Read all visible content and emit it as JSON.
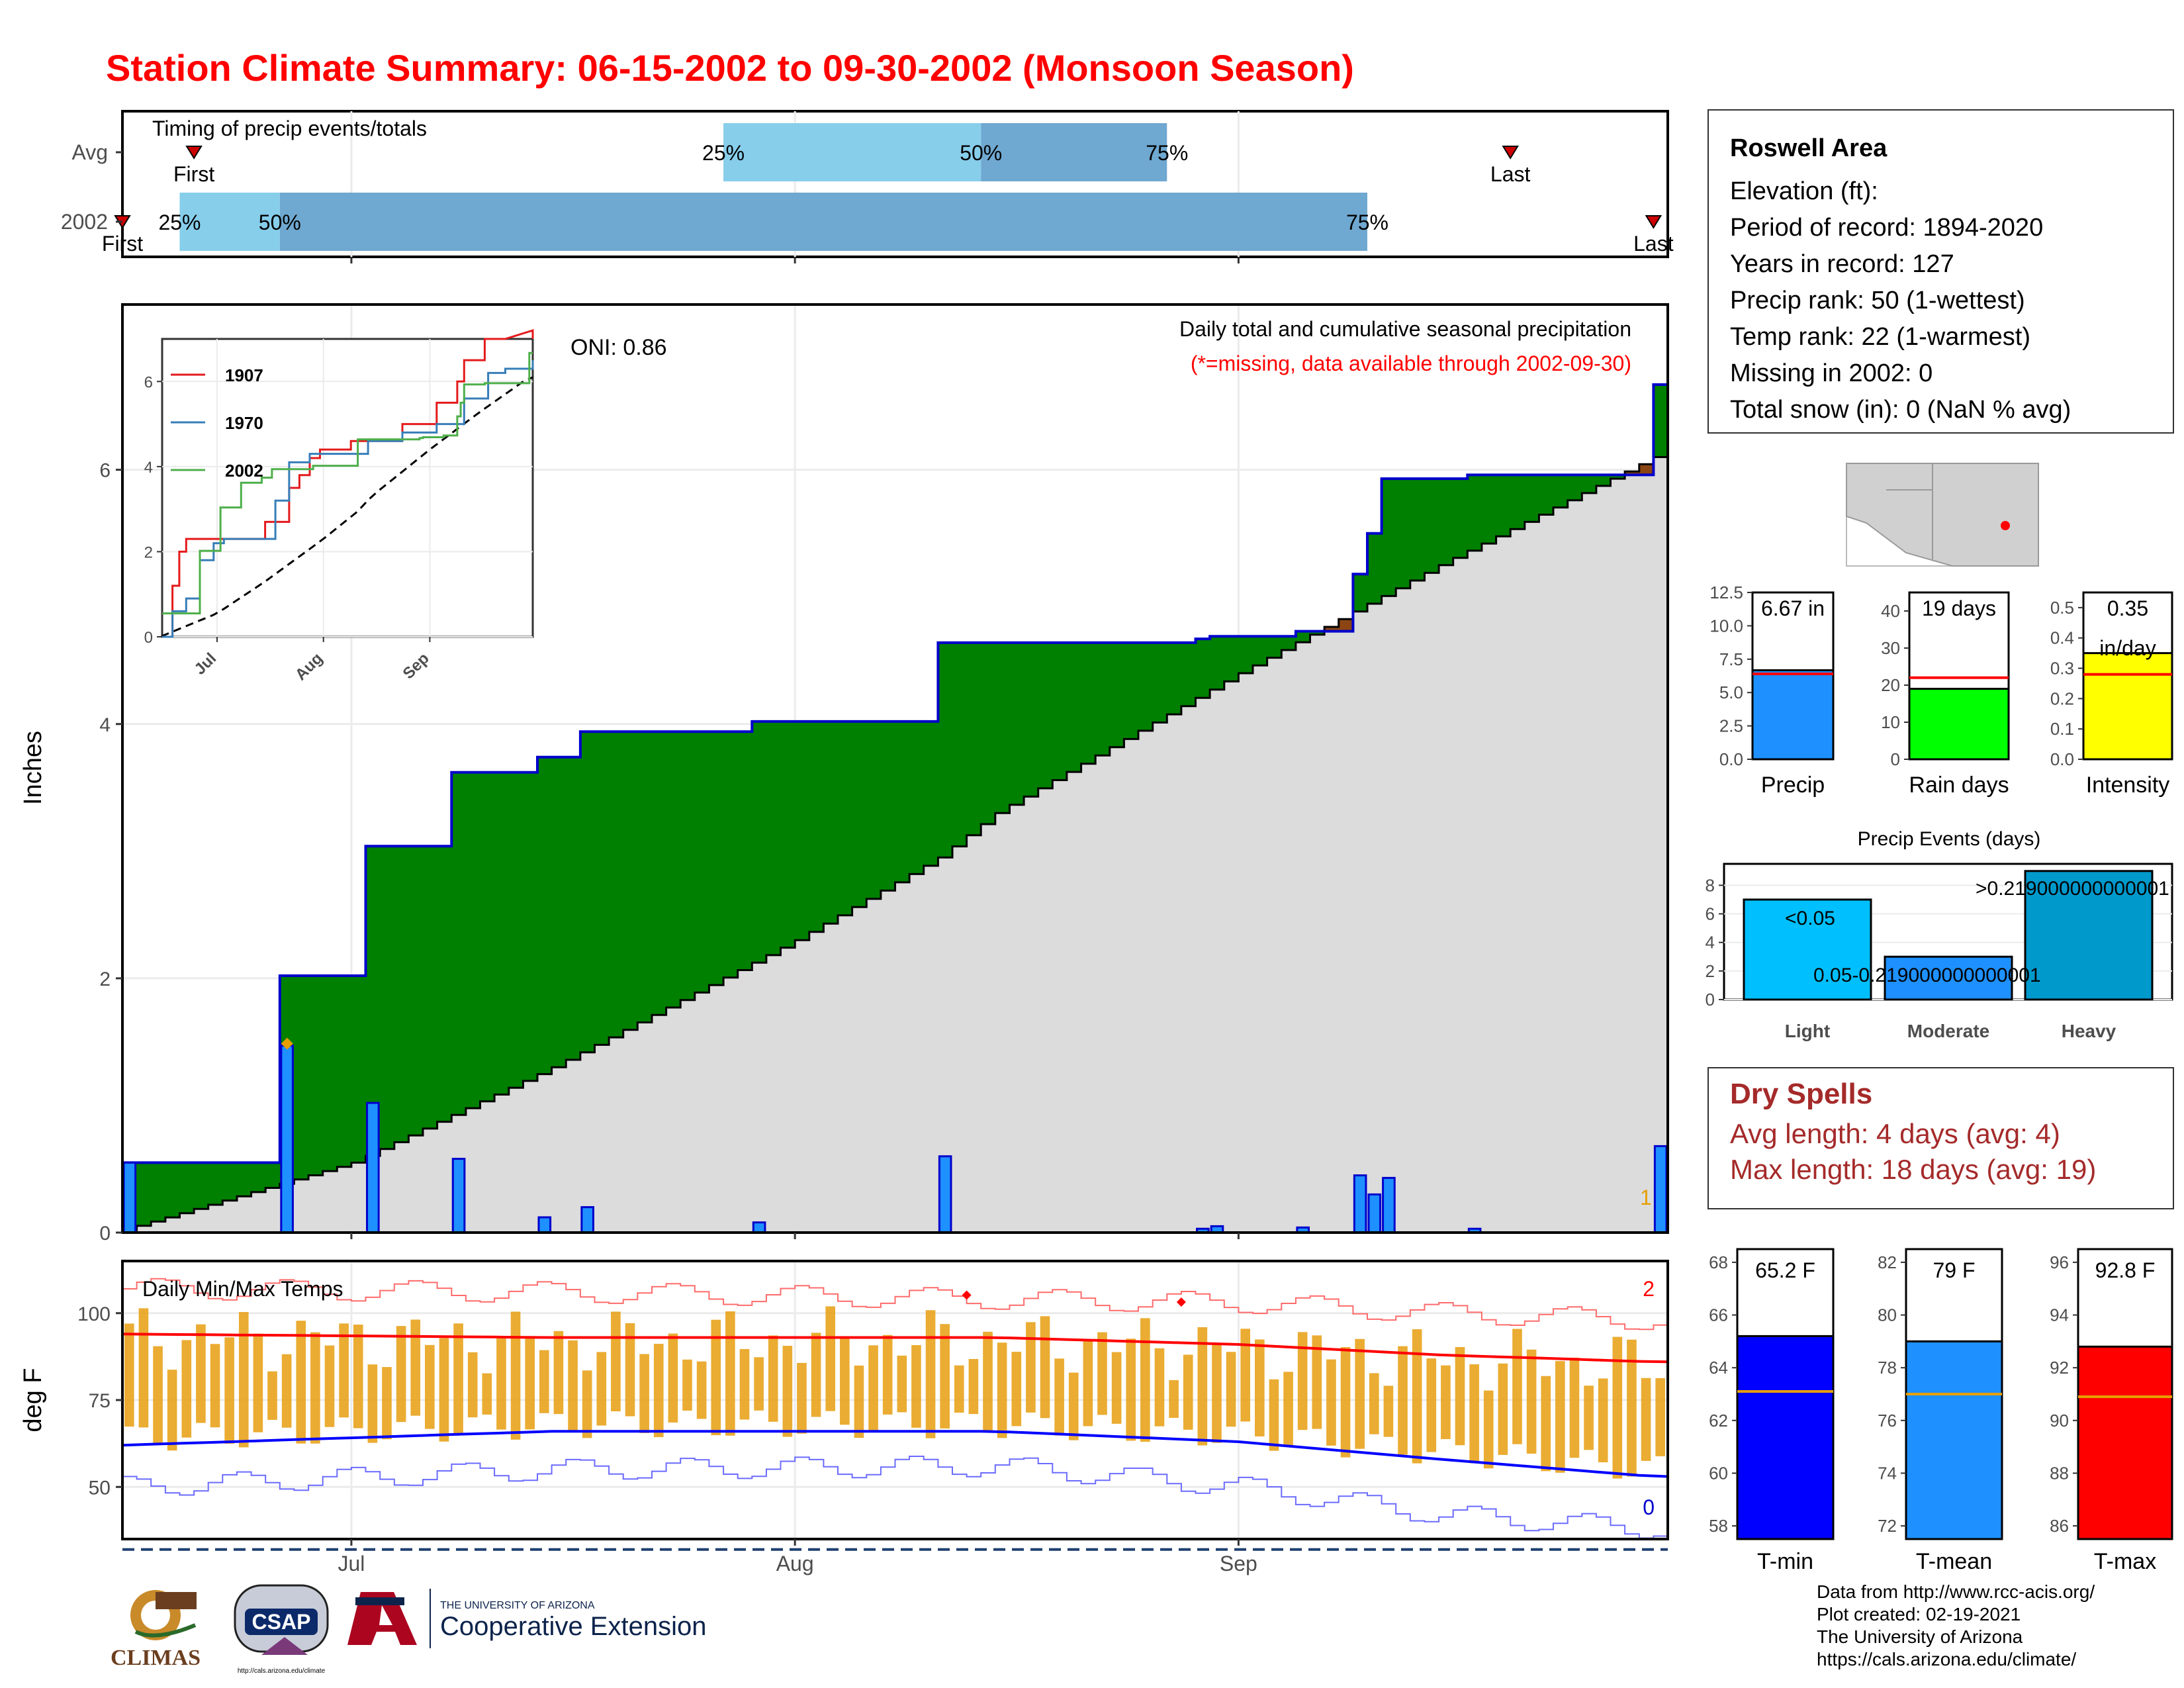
{
  "title": "Station Climate Summary: 06-15-2002 to 09-30-2002 (Monsoon Season)",
  "timing": {
    "title": "Timing of precip events/totals",
    "rows": [
      "Avg",
      "2002"
    ],
    "labels": {
      "p25": "25%",
      "p50": "50%",
      "p75": "75%",
      "first": "First",
      "last": "Last"
    },
    "avg": {
      "first": "2002-06-20",
      "p25": "2002-07-27",
      "p50": "2002-08-14",
      "p75": "2002-08-27",
      "last": "2002-09-20"
    },
    "y2002": {
      "first": "2002-06-15",
      "p25": "2002-06-19",
      "p50": "2002-06-26",
      "p75": "2002-09-10",
      "last": "2002-09-30"
    },
    "colors": {
      "q1": "#87ceeb",
      "q2": "#6fa8d0",
      "marker": "#cc0000"
    }
  },
  "precip_panel": {
    "ylabel": "Inches",
    "oni": "ONI: 0.86",
    "subtitle": "Daily total and cumulative seasonal precipitation",
    "missing_note": "(*=missing, data available through 2002-09-30)",
    "missing_count": "1",
    "yticks": [
      "0",
      "2",
      "4",
      "6"
    ],
    "xticks": [
      "Jul",
      "Aug",
      "Sep"
    ]
  },
  "temp_panel": {
    "title": "Daily Min/Max Temps",
    "ylabel": "deg F",
    "yticks": [
      "50",
      "75",
      "100"
    ],
    "xticks": [
      "Jul",
      "Aug",
      "Sep"
    ],
    "count_high": "2",
    "count_low": "0"
  },
  "station": {
    "name": "Roswell Area",
    "elevation": "Elevation (ft):",
    "period": "Period of record: 1894-2020",
    "years": "Years in record: 127",
    "precip_rank": "Precip rank: 50 (1-wettest)",
    "temp_rank": "Temp rank: 22 (1-warmest)",
    "missing": "Missing in 2002: 0",
    "snow": "Total snow (in): 0 (NaN % avg)"
  },
  "mini_bars": [
    {
      "label": "Precip",
      "value_text": "6.67 in",
      "value": 6.67,
      "avg": 6.4,
      "ymax": 12.5,
      "ticks": [
        "0.0",
        "2.5",
        "5.0",
        "7.5",
        "10.0",
        "12.5"
      ],
      "color": "#1e90ff"
    },
    {
      "label": "Rain days",
      "value_text": "19 days",
      "value": 19,
      "avg": 22,
      "ymax": 45,
      "ticks": [
        "0",
        "10",
        "20",
        "30",
        "40"
      ],
      "color": "#00ff00"
    },
    {
      "label": "Intensity",
      "value_text": "0.35",
      "value_text2": "in/day",
      "value": 0.35,
      "avg": 0.28,
      "ymax": 0.55,
      "ticks": [
        "0.0",
        "0.1",
        "0.2",
        "0.3",
        "0.4",
        "0.5"
      ],
      "color": "#ffff00"
    }
  ],
  "events": {
    "title": "Precip Events (days)",
    "categories": [
      "Light",
      "Moderate",
      "Heavy"
    ],
    "values": [
      7,
      3,
      9
    ],
    "bar_labels": [
      "<0.05",
      "0.05-0.219000000000001",
      ">0.219000000000001"
    ],
    "yticks": [
      "0",
      "2",
      "4",
      "6",
      "8"
    ]
  },
  "dry_spells": {
    "title": "Dry Spells",
    "avg": "Avg length: 4 days (avg: 4)",
    "max": "Max length: 18 days (avg: 19)"
  },
  "temp_bars": [
    {
      "label": "T-min",
      "value_text": "65.2 F",
      "value": 65.2,
      "avg": 63.1,
      "ymin": 57.5,
      "ymax": 68.5,
      "ticks": [
        "58",
        "60",
        "62",
        "64",
        "66",
        "68"
      ],
      "color": "#0000ff"
    },
    {
      "label": "T-mean",
      "value_text": "79 F",
      "value": 79.0,
      "avg": 77.0,
      "ymin": 71.5,
      "ymax": 82.5,
      "ticks": [
        "72",
        "74",
        "76",
        "78",
        "80",
        "82"
      ],
      "color": "#1e90ff"
    },
    {
      "label": "T-max",
      "value_text": "92.8 F",
      "value": 92.8,
      "avg": 90.9,
      "ymin": 85.5,
      "ymax": 96.5,
      "ticks": [
        "86",
        "88",
        "90",
        "92",
        "94",
        "96"
      ],
      "color": "#ff0000"
    }
  ],
  "inset": {
    "legend": [
      "1907",
      "1970",
      "2002"
    ],
    "colors": [
      "#e41a1c",
      "#377eb8",
      "#4daf4a"
    ],
    "yticks": [
      "0",
      "2",
      "4",
      "6"
    ],
    "xticks": [
      "Jul",
      "Aug",
      "Sep"
    ]
  },
  "credits": {
    "l1": "Data from http://www.rcc-acis.org/",
    "l2": "Plot created: 02-19-2021",
    "l3": "The University of Arizona",
    "l4": "https://cals.arizona.edu/climate/"
  },
  "logos": {
    "climas": "CLIMAS",
    "csap": "CSAP",
    "csap_url": "http://cals.arizona.edu/climate",
    "ua_line1": "THE UNIVERSITY OF ARIZONA",
    "ua_line2": "Cooperative Extension"
  },
  "chart_data": [
    {
      "type": "area",
      "title": "Daily total and cumulative seasonal precipitation",
      "xlabel": "",
      "ylabel": "Inches",
      "start": "2002-06-15",
      "end": "2002-09-30",
      "ylim": [
        0,
        7.3
      ],
      "daily_2002": [
        {
          "date": "2002-06-15",
          "value": 0.55
        },
        {
          "date": "2002-06-26",
          "value": 1.47
        },
        {
          "date": "2002-07-02",
          "value": 1.02
        },
        {
          "date": "2002-07-08",
          "value": 0.58
        },
        {
          "date": "2002-07-14",
          "value": 0.12
        },
        {
          "date": "2002-07-17",
          "value": 0.2
        },
        {
          "date": "2002-07-29",
          "value": 0.08
        },
        {
          "date": "2002-08-11",
          "value": 0.6
        },
        {
          "date": "2002-08-29",
          "value": 0.03
        },
        {
          "date": "2002-08-30",
          "value": 0.05
        },
        {
          "date": "2002-09-05",
          "value": 0.04
        },
        {
          "date": "2002-09-09",
          "value": 0.45
        },
        {
          "date": "2002-09-10",
          "value": 0.3
        },
        {
          "date": "2002-09-11",
          "value": 0.43
        },
        {
          "date": "2002-09-17",
          "value": 0.03
        },
        {
          "date": "2002-09-30",
          "value": 0.68
        }
      ],
      "cumulative_2002": [
        {
          "date": "2002-06-15",
          "value": 0.55
        },
        {
          "date": "2002-06-26",
          "value": 2.02
        },
        {
          "date": "2002-07-02",
          "value": 3.04
        },
        {
          "date": "2002-07-08",
          "value": 3.62
        },
        {
          "date": "2002-07-14",
          "value": 3.74
        },
        {
          "date": "2002-07-17",
          "value": 3.94
        },
        {
          "date": "2002-07-29",
          "value": 4.02
        },
        {
          "date": "2002-08-11",
          "value": 4.64
        },
        {
          "date": "2002-08-29",
          "value": 4.67
        },
        {
          "date": "2002-08-30",
          "value": 4.69
        },
        {
          "date": "2002-09-05",
          "value": 4.73
        },
        {
          "date": "2002-09-09",
          "value": 5.18
        },
        {
          "date": "2002-09-10",
          "value": 5.5
        },
        {
          "date": "2002-09-11",
          "value": 5.93
        },
        {
          "date": "2002-09-17",
          "value": 5.96
        },
        {
          "date": "2002-09-30",
          "value": 6.67
        }
      ],
      "average_cumulative": [
        {
          "date": "2002-06-15",
          "value": 0.02
        },
        {
          "date": "2002-07-01",
          "value": 0.55
        },
        {
          "date": "2002-07-15",
          "value": 1.3
        },
        {
          "date": "2002-08-01",
          "value": 2.3
        },
        {
          "date": "2002-08-11",
          "value": 2.95
        },
        {
          "date": "2002-08-15",
          "value": 3.3
        },
        {
          "date": "2002-09-01",
          "value": 4.4
        },
        {
          "date": "2002-09-15",
          "value": 5.25
        },
        {
          "date": "2002-09-30",
          "value": 6.1
        }
      ]
    },
    {
      "type": "line",
      "title": "Daily Min/Max Temps",
      "ylabel": "deg F",
      "ylim": [
        35,
        115
      ],
      "series": [
        {
          "name": "avg_max",
          "x": [
            "2002-06-15",
            "2002-07-15",
            "2002-08-15",
            "2002-09-01",
            "2002-09-15",
            "2002-09-30"
          ],
          "values": [
            94,
            93,
            93,
            91,
            88,
            86
          ]
        },
        {
          "name": "avg_min",
          "x": [
            "2002-06-15",
            "2002-07-15",
            "2002-08-15",
            "2002-09-01",
            "2002-09-15",
            "2002-09-30"
          ],
          "values": [
            62,
            66,
            66,
            63,
            58,
            53
          ]
        },
        {
          "name": "record_high",
          "x": [
            "2002-06-15",
            "2002-07-15",
            "2002-08-15",
            "2002-09-01",
            "2002-09-15",
            "2002-09-30"
          ],
          "values": [
            107,
            106,
            104,
            103,
            100,
            98
          ]
        },
        {
          "name": "record_low",
          "x": [
            "2002-06-15",
            "2002-07-15",
            "2002-08-15",
            "2002-09-01",
            "2002-09-15",
            "2002-09-30"
          ],
          "values": [
            50,
            55,
            56,
            50,
            42,
            38
          ]
        },
        {
          "name": "normal_freeze",
          "x": [
            "2002-06-15",
            "2002-09-30"
          ],
          "values": [
            32,
            32
          ]
        }
      ]
    },
    {
      "type": "bar",
      "title": "Precip Events (days)",
      "categories": [
        "Light",
        "Moderate",
        "Heavy"
      ],
      "values": [
        7,
        3,
        9
      ]
    }
  ]
}
